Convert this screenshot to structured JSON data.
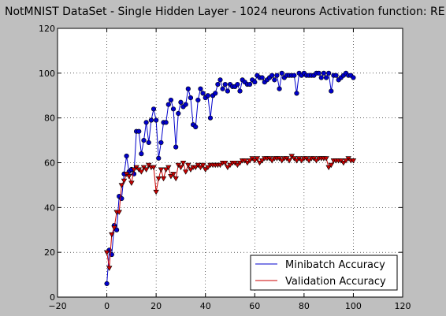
{
  "chart_data": {
    "type": "line",
    "title": "NotMNIST DataSet - Single Hidden Layer - 1024 neurons Activation function: RE",
    "xlabel": "",
    "ylabel": "",
    "xlim": [
      -20,
      120
    ],
    "ylim": [
      0,
      120
    ],
    "x_ticks": [
      -20,
      0,
      20,
      40,
      60,
      80,
      100,
      120
    ],
    "y_ticks": [
      0,
      20,
      40,
      60,
      80,
      100,
      120
    ],
    "grid": true,
    "legend_position": "lower-right",
    "x": [
      0,
      1,
      2,
      3,
      4,
      5,
      6,
      7,
      8,
      9,
      10,
      11,
      12,
      13,
      14,
      15,
      16,
      17,
      18,
      19,
      20,
      21,
      22,
      23,
      24,
      25,
      26,
      27,
      28,
      29,
      30,
      31,
      32,
      33,
      34,
      35,
      36,
      37,
      38,
      39,
      40,
      41,
      42,
      43,
      44,
      45,
      46,
      47,
      48,
      49,
      50,
      51,
      52,
      53,
      54,
      55,
      56,
      57,
      58,
      59,
      60,
      61,
      62,
      63,
      64,
      65,
      66,
      67,
      68,
      69,
      70,
      71,
      72,
      73,
      74,
      75,
      76,
      77,
      78,
      79,
      80,
      81,
      82,
      83,
      84,
      85,
      86,
      87,
      88,
      89,
      90,
      91,
      92,
      93,
      94,
      95,
      96,
      97,
      98,
      99,
      100
    ],
    "series": [
      {
        "name": "Minibatch Accuracy",
        "color": "#0000cc",
        "marker": "circle",
        "values": [
          6,
          21,
          19,
          32,
          30,
          45,
          44,
          55,
          63,
          56,
          57,
          55,
          74,
          74,
          64,
          70,
          78,
          69,
          79,
          84,
          79,
          62,
          69,
          78,
          78,
          86,
          88,
          84,
          67,
          82,
          87,
          85,
          86,
          93,
          89,
          77,
          76,
          88,
          93,
          91,
          89,
          90,
          80,
          90,
          91,
          95,
          97,
          93,
          95,
          92,
          95,
          94,
          94,
          95,
          92,
          97,
          96,
          95,
          95,
          97,
          96,
          99,
          98,
          98,
          96,
          97,
          98,
          99,
          97,
          99,
          93,
          100,
          98,
          99,
          99,
          99,
          99,
          91,
          100,
          99,
          100,
          99,
          99,
          99,
          99,
          100,
          100,
          98,
          100,
          98,
          100,
          92,
          99,
          99,
          97,
          98,
          99,
          100,
          99,
          99,
          98
        ]
      },
      {
        "name": "Validation Accuracy",
        "color": "#cc0000",
        "marker": "triangle-down",
        "values": [
          20,
          13,
          28,
          31,
          38,
          38,
          50,
          52,
          55,
          54,
          51,
          57,
          58,
          57,
          56,
          58,
          57,
          59,
          58,
          58,
          47,
          53,
          57,
          53,
          57,
          58,
          54,
          55,
          53,
          59,
          58,
          60,
          56,
          59,
          57,
          58,
          58,
          59,
          58,
          59,
          57,
          58,
          59,
          59,
          59,
          59,
          59,
          60,
          60,
          58,
          59,
          60,
          60,
          59,
          60,
          61,
          61,
          60,
          61,
          62,
          61,
          62,
          60,
          61,
          62,
          62,
          62,
          61,
          62,
          62,
          62,
          61,
          62,
          62,
          61,
          63,
          62,
          61,
          62,
          61,
          62,
          62,
          61,
          62,
          62,
          61,
          62,
          62,
          62,
          62,
          58,
          59,
          61,
          61,
          61,
          61,
          60,
          61,
          62,
          61,
          61
        ]
      }
    ]
  }
}
